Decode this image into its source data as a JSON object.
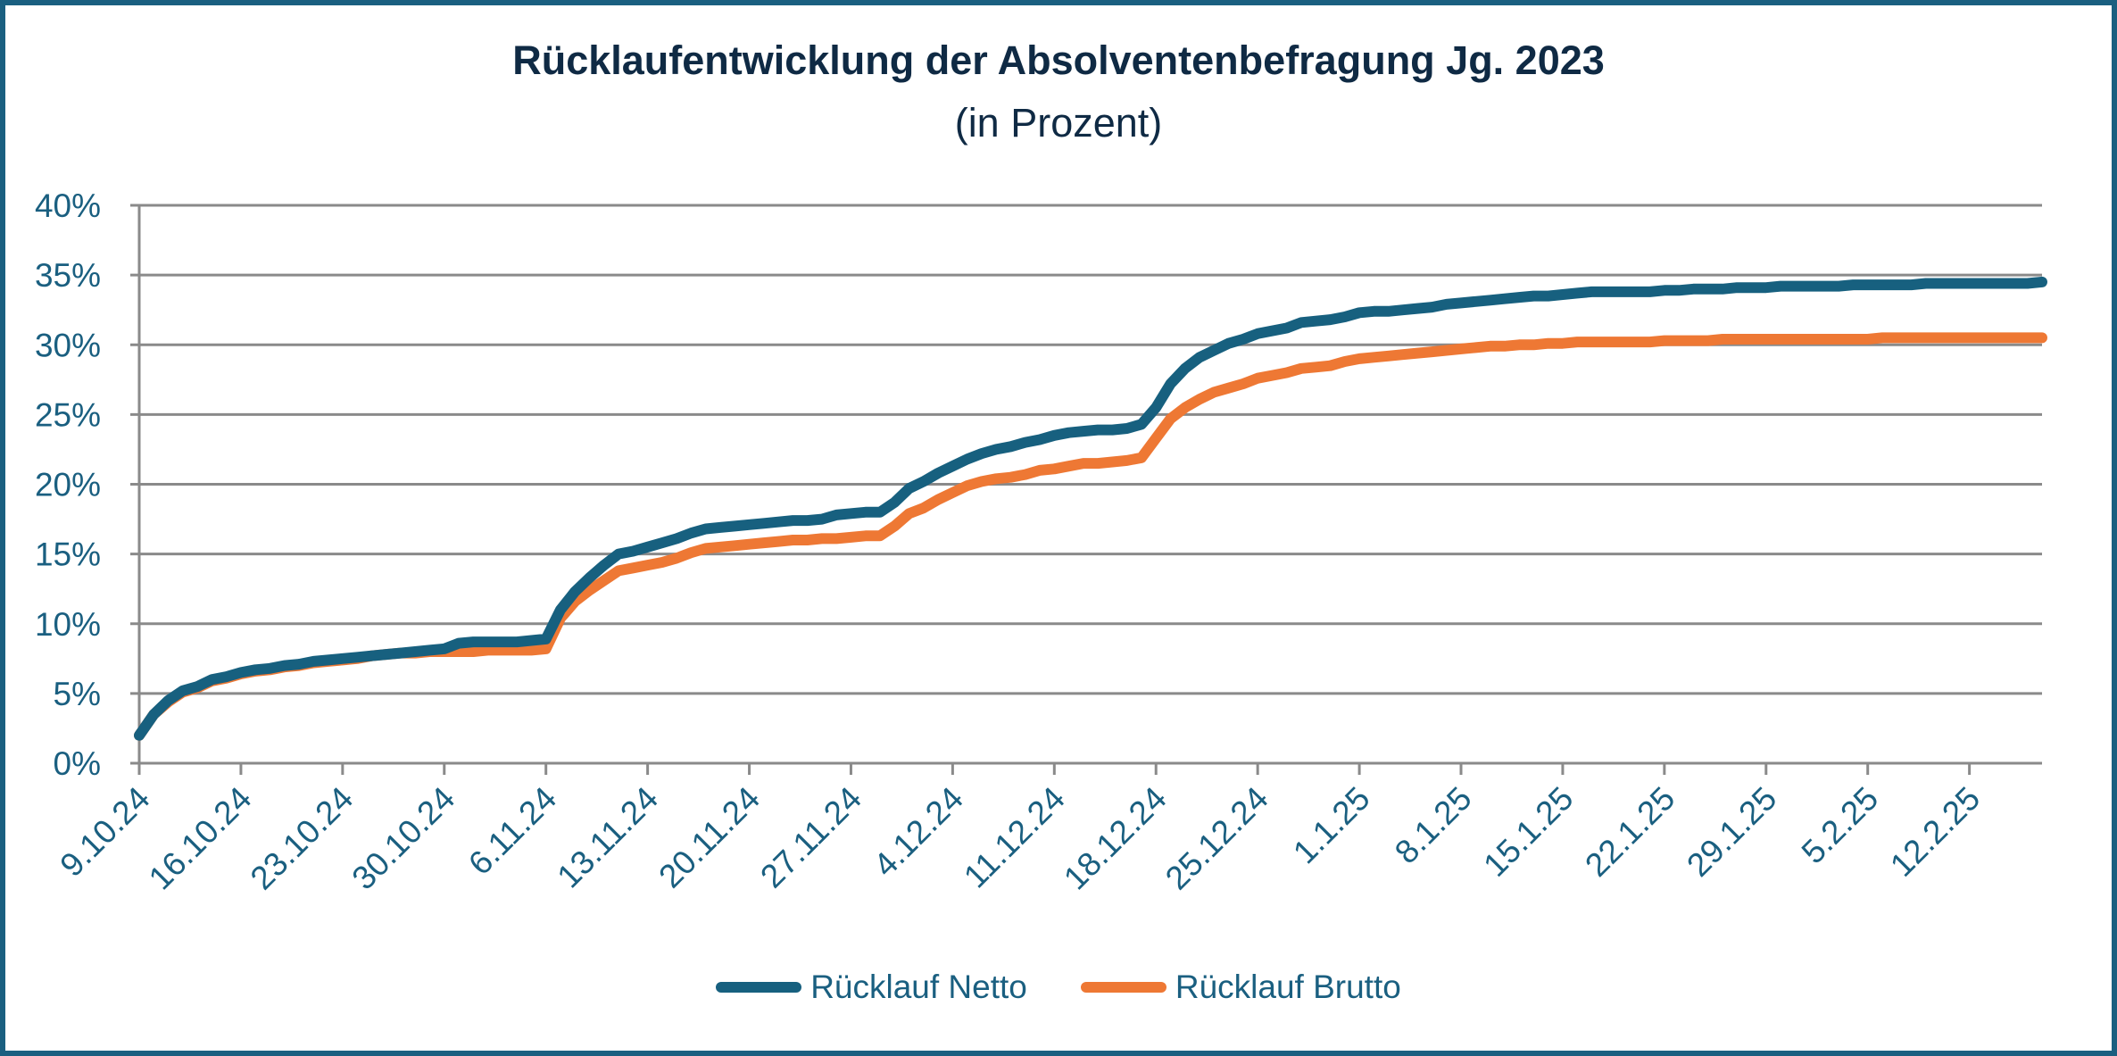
{
  "chart_data": {
    "type": "line",
    "title": "Rücklaufentwicklung der Absolventenbefragung Jg. 2023",
    "subtitle": "(in Prozent)",
    "xlabel": "",
    "ylabel": "",
    "ylim": [
      0,
      40
    ],
    "y_ticks": [
      0,
      5,
      10,
      15,
      20,
      25,
      30,
      35,
      40
    ],
    "y_tick_labels": [
      "0%",
      "5%",
      "10%",
      "15%",
      "20%",
      "25%",
      "30%",
      "35%",
      "40%"
    ],
    "x_range": [
      "2024-10-09",
      "2025-02-17"
    ],
    "x_ticks": [
      "2024-10-09",
      "2024-10-16",
      "2024-10-23",
      "2024-10-30",
      "2024-11-06",
      "2024-11-13",
      "2024-11-20",
      "2024-11-27",
      "2024-12-04",
      "2024-12-11",
      "2024-12-18",
      "2024-12-25",
      "2025-01-01",
      "2025-01-08",
      "2025-01-15",
      "2025-01-22",
      "2025-01-29",
      "2025-02-05",
      "2025-02-12"
    ],
    "x_tick_labels": [
      "9.10.24",
      "16.10.24",
      "23.10.24",
      "30.10.24",
      "6.11.24",
      "13.11.24",
      "20.11.24",
      "27.11.24",
      "4.12.24",
      "11.12.24",
      "18.12.24",
      "25.12.24",
      "1.1.25",
      "8.1.25",
      "15.1.25",
      "22.1.25",
      "29.1.25",
      "5.2.25",
      "12.2.25"
    ],
    "grid": true,
    "legend": "bottom",
    "series": [
      {
        "name": "Rücklauf Netto",
        "color": "#17607f",
        "points": [
          [
            "2024-10-09",
            2.0
          ],
          [
            "2024-10-10",
            3.5
          ],
          [
            "2024-10-11",
            4.5
          ],
          [
            "2024-10-12",
            5.2
          ],
          [
            "2024-10-13",
            5.5
          ],
          [
            "2024-10-14",
            6.0
          ],
          [
            "2024-10-15",
            6.2
          ],
          [
            "2024-10-16",
            6.5
          ],
          [
            "2024-10-17",
            6.7
          ],
          [
            "2024-10-18",
            6.8
          ],
          [
            "2024-10-19",
            7.0
          ],
          [
            "2024-10-20",
            7.1
          ],
          [
            "2024-10-21",
            7.3
          ],
          [
            "2024-10-22",
            7.4
          ],
          [
            "2024-10-23",
            7.5
          ],
          [
            "2024-10-24",
            7.6
          ],
          [
            "2024-10-25",
            7.7
          ],
          [
            "2024-10-26",
            7.8
          ],
          [
            "2024-10-27",
            7.9
          ],
          [
            "2024-10-28",
            8.0
          ],
          [
            "2024-10-29",
            8.1
          ],
          [
            "2024-10-30",
            8.2
          ],
          [
            "2024-10-31",
            8.6
          ],
          [
            "2024-11-01",
            8.7
          ],
          [
            "2024-11-02",
            8.7
          ],
          [
            "2024-11-03",
            8.7
          ],
          [
            "2024-11-04",
            8.7
          ],
          [
            "2024-11-05",
            8.8
          ],
          [
            "2024-11-06",
            8.9
          ],
          [
            "2024-11-07",
            11.0
          ],
          [
            "2024-11-08",
            12.3
          ],
          [
            "2024-11-09",
            13.3
          ],
          [
            "2024-11-10",
            14.2
          ],
          [
            "2024-11-11",
            15.0
          ],
          [
            "2024-11-12",
            15.2
          ],
          [
            "2024-11-13",
            15.5
          ],
          [
            "2024-11-14",
            15.8
          ],
          [
            "2024-11-15",
            16.1
          ],
          [
            "2024-11-16",
            16.5
          ],
          [
            "2024-11-17",
            16.8
          ],
          [
            "2024-11-18",
            16.9
          ],
          [
            "2024-11-19",
            17.0
          ],
          [
            "2024-11-20",
            17.1
          ],
          [
            "2024-11-21",
            17.2
          ],
          [
            "2024-11-22",
            17.3
          ],
          [
            "2024-11-23",
            17.4
          ],
          [
            "2024-11-24",
            17.4
          ],
          [
            "2024-11-25",
            17.5
          ],
          [
            "2024-11-26",
            17.8
          ],
          [
            "2024-11-27",
            17.9
          ],
          [
            "2024-11-28",
            18.0
          ],
          [
            "2024-11-29",
            18.0
          ],
          [
            "2024-11-30",
            18.7
          ],
          [
            "2024-12-01",
            19.7
          ],
          [
            "2024-12-02",
            20.2
          ],
          [
            "2024-12-03",
            20.8
          ],
          [
            "2024-12-04",
            21.3
          ],
          [
            "2024-12-05",
            21.8
          ],
          [
            "2024-12-06",
            22.2
          ],
          [
            "2024-12-07",
            22.5
          ],
          [
            "2024-12-08",
            22.7
          ],
          [
            "2024-12-09",
            23.0
          ],
          [
            "2024-12-10",
            23.2
          ],
          [
            "2024-12-11",
            23.5
          ],
          [
            "2024-12-12",
            23.7
          ],
          [
            "2024-12-13",
            23.8
          ],
          [
            "2024-12-14",
            23.9
          ],
          [
            "2024-12-15",
            23.9
          ],
          [
            "2024-12-16",
            24.0
          ],
          [
            "2024-12-17",
            24.3
          ],
          [
            "2024-12-18",
            25.5
          ],
          [
            "2024-12-19",
            27.2
          ],
          [
            "2024-12-20",
            28.3
          ],
          [
            "2024-12-21",
            29.1
          ],
          [
            "2024-12-22",
            29.6
          ],
          [
            "2024-12-23",
            30.1
          ],
          [
            "2024-12-24",
            30.4
          ],
          [
            "2024-12-25",
            30.8
          ],
          [
            "2024-12-26",
            31.0
          ],
          [
            "2024-12-27",
            31.2
          ],
          [
            "2024-12-28",
            31.6
          ],
          [
            "2024-12-29",
            31.7
          ],
          [
            "2024-12-30",
            31.8
          ],
          [
            "2024-12-31",
            32.0
          ],
          [
            "2025-01-01",
            32.3
          ],
          [
            "2025-01-02",
            32.4
          ],
          [
            "2025-01-03",
            32.4
          ],
          [
            "2025-01-04",
            32.5
          ],
          [
            "2025-01-05",
            32.6
          ],
          [
            "2025-01-06",
            32.7
          ],
          [
            "2025-01-07",
            32.9
          ],
          [
            "2025-01-08",
            33.0
          ],
          [
            "2025-01-09",
            33.1
          ],
          [
            "2025-01-10",
            33.2
          ],
          [
            "2025-01-11",
            33.3
          ],
          [
            "2025-01-12",
            33.4
          ],
          [
            "2025-01-13",
            33.5
          ],
          [
            "2025-01-14",
            33.5
          ],
          [
            "2025-01-15",
            33.6
          ],
          [
            "2025-01-16",
            33.7
          ],
          [
            "2025-01-17",
            33.8
          ],
          [
            "2025-01-18",
            33.8
          ],
          [
            "2025-01-19",
            33.8
          ],
          [
            "2025-01-20",
            33.8
          ],
          [
            "2025-01-21",
            33.8
          ],
          [
            "2025-01-22",
            33.9
          ],
          [
            "2025-01-23",
            33.9
          ],
          [
            "2025-01-24",
            34.0
          ],
          [
            "2025-01-25",
            34.0
          ],
          [
            "2025-01-26",
            34.0
          ],
          [
            "2025-01-27",
            34.1
          ],
          [
            "2025-01-28",
            34.1
          ],
          [
            "2025-01-29",
            34.1
          ],
          [
            "2025-01-30",
            34.2
          ],
          [
            "2025-01-31",
            34.2
          ],
          [
            "2025-02-01",
            34.2
          ],
          [
            "2025-02-02",
            34.2
          ],
          [
            "2025-02-03",
            34.2
          ],
          [
            "2025-02-04",
            34.3
          ],
          [
            "2025-02-05",
            34.3
          ],
          [
            "2025-02-06",
            34.3
          ],
          [
            "2025-02-07",
            34.3
          ],
          [
            "2025-02-08",
            34.3
          ],
          [
            "2025-02-09",
            34.4
          ],
          [
            "2025-02-10",
            34.4
          ],
          [
            "2025-02-11",
            34.4
          ],
          [
            "2025-02-12",
            34.4
          ],
          [
            "2025-02-13",
            34.4
          ],
          [
            "2025-02-14",
            34.4
          ],
          [
            "2025-02-15",
            34.4
          ],
          [
            "2025-02-16",
            34.4
          ],
          [
            "2025-02-17",
            34.5
          ]
        ]
      },
      {
        "name": "Rücklauf Brutto",
        "color": "#ee7834",
        "points": [
          [
            "2024-10-09",
            2.0
          ],
          [
            "2024-10-10",
            3.5
          ],
          [
            "2024-10-11",
            4.4
          ],
          [
            "2024-10-12",
            5.1
          ],
          [
            "2024-10-13",
            5.4
          ],
          [
            "2024-10-14",
            5.9
          ],
          [
            "2024-10-15",
            6.1
          ],
          [
            "2024-10-16",
            6.4
          ],
          [
            "2024-10-17",
            6.6
          ],
          [
            "2024-10-18",
            6.7
          ],
          [
            "2024-10-19",
            6.9
          ],
          [
            "2024-10-20",
            7.0
          ],
          [
            "2024-10-21",
            7.2
          ],
          [
            "2024-10-22",
            7.3
          ],
          [
            "2024-10-23",
            7.4
          ],
          [
            "2024-10-24",
            7.5
          ],
          [
            "2024-10-25",
            7.7
          ],
          [
            "2024-10-26",
            7.8
          ],
          [
            "2024-10-27",
            7.9
          ],
          [
            "2024-10-28",
            7.9
          ],
          [
            "2024-10-29",
            8.0
          ],
          [
            "2024-10-30",
            8.0
          ],
          [
            "2024-10-31",
            8.0
          ],
          [
            "2024-11-01",
            8.0
          ],
          [
            "2024-11-02",
            8.1
          ],
          [
            "2024-11-03",
            8.1
          ],
          [
            "2024-11-04",
            8.1
          ],
          [
            "2024-11-05",
            8.1
          ],
          [
            "2024-11-06",
            8.2
          ],
          [
            "2024-11-07",
            10.4
          ],
          [
            "2024-11-08",
            11.6
          ],
          [
            "2024-11-09",
            12.4
          ],
          [
            "2024-11-10",
            13.1
          ],
          [
            "2024-11-11",
            13.8
          ],
          [
            "2024-11-12",
            14.0
          ],
          [
            "2024-11-13",
            14.2
          ],
          [
            "2024-11-14",
            14.4
          ],
          [
            "2024-11-15",
            14.7
          ],
          [
            "2024-11-16",
            15.1
          ],
          [
            "2024-11-17",
            15.4
          ],
          [
            "2024-11-18",
            15.5
          ],
          [
            "2024-11-19",
            15.6
          ],
          [
            "2024-11-20",
            15.7
          ],
          [
            "2024-11-21",
            15.8
          ],
          [
            "2024-11-22",
            15.9
          ],
          [
            "2024-11-23",
            16.0
          ],
          [
            "2024-11-24",
            16.0
          ],
          [
            "2024-11-25",
            16.1
          ],
          [
            "2024-11-26",
            16.1
          ],
          [
            "2024-11-27",
            16.2
          ],
          [
            "2024-11-28",
            16.3
          ],
          [
            "2024-11-29",
            16.3
          ],
          [
            "2024-11-30",
            17.0
          ],
          [
            "2024-12-01",
            17.9
          ],
          [
            "2024-12-02",
            18.3
          ],
          [
            "2024-12-03",
            18.9
          ],
          [
            "2024-12-04",
            19.4
          ],
          [
            "2024-12-05",
            19.9
          ],
          [
            "2024-12-06",
            20.2
          ],
          [
            "2024-12-07",
            20.4
          ],
          [
            "2024-12-08",
            20.5
          ],
          [
            "2024-12-09",
            20.7
          ],
          [
            "2024-12-10",
            21.0
          ],
          [
            "2024-12-11",
            21.1
          ],
          [
            "2024-12-12",
            21.3
          ],
          [
            "2024-12-13",
            21.5
          ],
          [
            "2024-12-14",
            21.5
          ],
          [
            "2024-12-15",
            21.6
          ],
          [
            "2024-12-16",
            21.7
          ],
          [
            "2024-12-17",
            21.9
          ],
          [
            "2024-12-18",
            23.3
          ],
          [
            "2024-12-19",
            24.7
          ],
          [
            "2024-12-20",
            25.5
          ],
          [
            "2024-12-21",
            26.1
          ],
          [
            "2024-12-22",
            26.6
          ],
          [
            "2024-12-23",
            26.9
          ],
          [
            "2024-12-24",
            27.2
          ],
          [
            "2024-12-25",
            27.6
          ],
          [
            "2024-12-26",
            27.8
          ],
          [
            "2024-12-27",
            28.0
          ],
          [
            "2024-12-28",
            28.3
          ],
          [
            "2024-12-29",
            28.4
          ],
          [
            "2024-12-30",
            28.5
          ],
          [
            "2024-12-31",
            28.8
          ],
          [
            "2025-01-01",
            29.0
          ],
          [
            "2025-01-02",
            29.1
          ],
          [
            "2025-01-03",
            29.2
          ],
          [
            "2025-01-04",
            29.3
          ],
          [
            "2025-01-05",
            29.4
          ],
          [
            "2025-01-06",
            29.5
          ],
          [
            "2025-01-07",
            29.6
          ],
          [
            "2025-01-08",
            29.7
          ],
          [
            "2025-01-09",
            29.8
          ],
          [
            "2025-01-10",
            29.9
          ],
          [
            "2025-01-11",
            29.9
          ],
          [
            "2025-01-12",
            30.0
          ],
          [
            "2025-01-13",
            30.0
          ],
          [
            "2025-01-14",
            30.1
          ],
          [
            "2025-01-15",
            30.1
          ],
          [
            "2025-01-16",
            30.2
          ],
          [
            "2025-01-17",
            30.2
          ],
          [
            "2025-01-18",
            30.2
          ],
          [
            "2025-01-19",
            30.2
          ],
          [
            "2025-01-20",
            30.2
          ],
          [
            "2025-01-21",
            30.2
          ],
          [
            "2025-01-22",
            30.3
          ],
          [
            "2025-01-23",
            30.3
          ],
          [
            "2025-01-24",
            30.3
          ],
          [
            "2025-01-25",
            30.3
          ],
          [
            "2025-01-26",
            30.4
          ],
          [
            "2025-01-27",
            30.4
          ],
          [
            "2025-01-28",
            30.4
          ],
          [
            "2025-01-29",
            30.4
          ],
          [
            "2025-01-30",
            30.4
          ],
          [
            "2025-01-31",
            30.4
          ],
          [
            "2025-02-01",
            30.4
          ],
          [
            "2025-02-02",
            30.4
          ],
          [
            "2025-02-03",
            30.4
          ],
          [
            "2025-02-04",
            30.4
          ],
          [
            "2025-02-05",
            30.4
          ],
          [
            "2025-02-06",
            30.5
          ],
          [
            "2025-02-07",
            30.5
          ],
          [
            "2025-02-08",
            30.5
          ],
          [
            "2025-02-09",
            30.5
          ],
          [
            "2025-02-10",
            30.5
          ],
          [
            "2025-02-11",
            30.5
          ],
          [
            "2025-02-12",
            30.5
          ],
          [
            "2025-02-13",
            30.5
          ],
          [
            "2025-02-14",
            30.5
          ],
          [
            "2025-02-15",
            30.5
          ],
          [
            "2025-02-16",
            30.5
          ],
          [
            "2025-02-17",
            30.5
          ]
        ]
      }
    ]
  }
}
